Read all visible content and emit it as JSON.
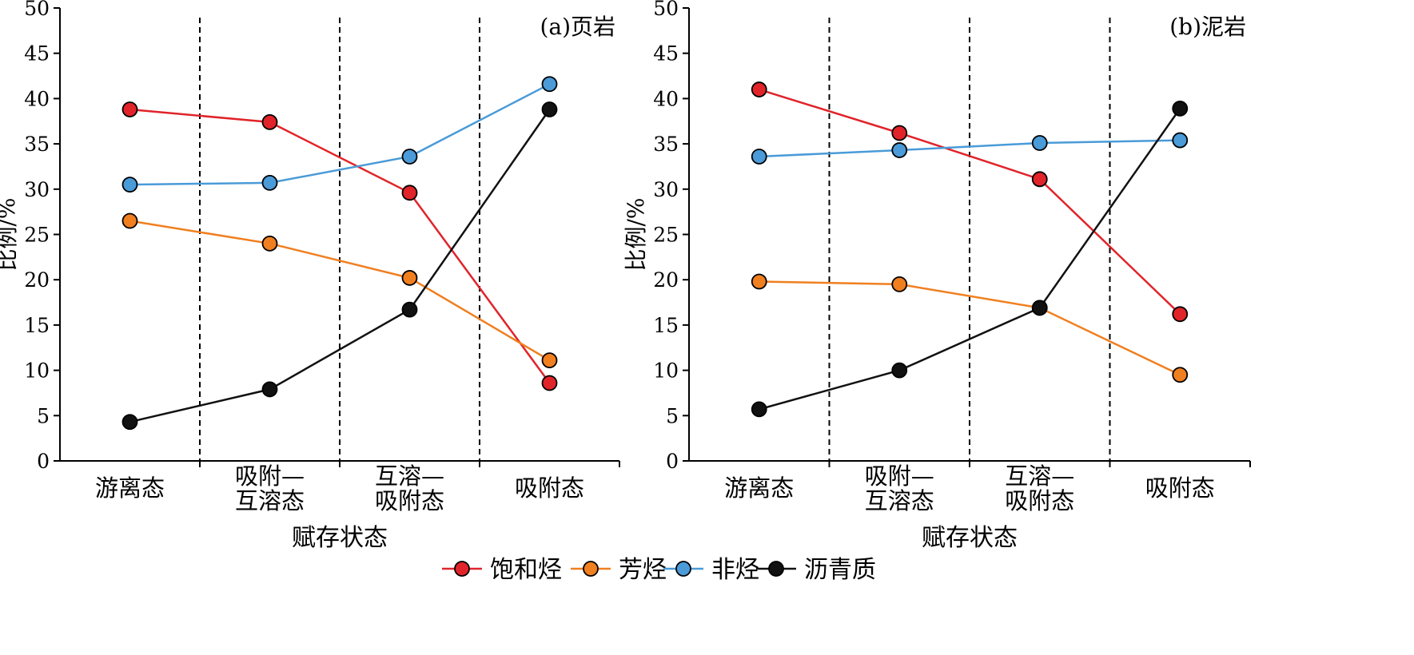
{
  "legend": [
    {
      "label": "饱和烃",
      "color": "#e0242a"
    },
    {
      "label": "芳烃",
      "color": "#f07f1f"
    },
    {
      "label": "非烃",
      "color": "#4a9bd8"
    },
    {
      "label": "沥青质",
      "color": "#111111"
    }
  ],
  "chart_data": [
    {
      "type": "line",
      "panel_label": "(a)页岩",
      "xlabel": "赋存状态",
      "ylabel": "比例/%",
      "ylim": [
        0,
        50
      ],
      "yticks": [
        0,
        5,
        10,
        15,
        20,
        25,
        30,
        35,
        40,
        45,
        50
      ],
      "categories": [
        [
          "游离态"
        ],
        [
          "吸附—",
          "互溶态"
        ],
        [
          "互溶—",
          "吸附态"
        ],
        [
          "吸附态"
        ]
      ],
      "series": [
        {
          "name": "饱和烃",
          "color": "#e0242a",
          "values": [
            38.8,
            37.4,
            29.6,
            8.6
          ]
        },
        {
          "name": "芳烃",
          "color": "#f07f1f",
          "values": [
            26.5,
            24.0,
            20.2,
            11.1
          ]
        },
        {
          "name": "非烃",
          "color": "#4a9bd8",
          "values": [
            30.5,
            30.7,
            33.6,
            41.6
          ]
        },
        {
          "name": "沥青质",
          "color": "#111111",
          "values": [
            4.3,
            7.9,
            16.7,
            38.8
          ]
        }
      ]
    },
    {
      "type": "line",
      "panel_label": "(b)泥岩",
      "xlabel": "赋存状态",
      "ylabel": "比例/%",
      "ylim": [
        0,
        50
      ],
      "yticks": [
        0,
        5,
        10,
        15,
        20,
        25,
        30,
        35,
        40,
        45,
        50
      ],
      "categories": [
        [
          "游离态"
        ],
        [
          "吸附—",
          "互溶态"
        ],
        [
          "互溶—",
          "吸附态"
        ],
        [
          "吸附态"
        ]
      ],
      "series": [
        {
          "name": "饱和烃",
          "color": "#e0242a",
          "values": [
            41.0,
            36.2,
            31.1,
            16.2
          ]
        },
        {
          "name": "芳烃",
          "color": "#f07f1f",
          "values": [
            19.8,
            19.5,
            16.9,
            9.5
          ]
        },
        {
          "name": "非烃",
          "color": "#4a9bd8",
          "values": [
            33.6,
            34.3,
            35.1,
            35.4
          ]
        },
        {
          "name": "沥青质",
          "color": "#111111",
          "values": [
            5.7,
            10.0,
            16.9,
            38.9
          ]
        }
      ]
    }
  ]
}
